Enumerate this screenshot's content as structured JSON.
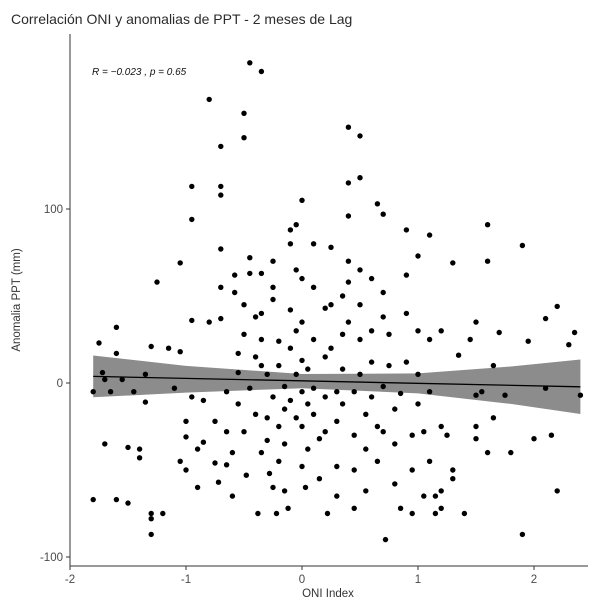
{
  "chart_data": {
    "type": "scatter",
    "title": "Correlación ONI y anomalias de PPT - 2 meses de Lag",
    "xlabel": "ONI Index",
    "ylabel": "Anomalia PPT (mm)",
    "xlim": [
      -2,
      2.5
    ],
    "ylim": [
      -100,
      190
    ],
    "xticks": [
      -2,
      -1,
      0,
      1,
      2
    ],
    "yticks": [
      -100,
      0,
      100
    ],
    "xtick_labels": [
      "-2",
      "-1",
      "0",
      "1",
      "2"
    ],
    "ytick_labels": [
      "-100",
      "0",
      "100"
    ],
    "grid": false,
    "annotation": "R = −0.023 , p = 0.65",
    "regression": {
      "x": [
        -1.8,
        2.4
      ],
      "y": [
        3.8,
        -2.2
      ]
    },
    "confidence_band": {
      "x": [
        -1.8,
        -1.0,
        0.0,
        1.0,
        1.8,
        2.4
      ],
      "upper": [
        15.8,
        9.8,
        5.2,
        5.5,
        9.5,
        13.5
      ],
      "lower": [
        -8.2,
        -5.5,
        -3.0,
        -6.0,
        -12.0,
        -17.8
      ]
    },
    "points": [
      [
        -1.8,
        -67
      ],
      [
        -1.8,
        -5
      ],
      [
        -1.75,
        23
      ],
      [
        -1.72,
        6
      ],
      [
        -1.7,
        2
      ],
      [
        -1.7,
        -35
      ],
      [
        -1.65,
        -5
      ],
      [
        -1.6,
        32
      ],
      [
        -1.6,
        17
      ],
      [
        -1.6,
        -67
      ],
      [
        -1.55,
        2
      ],
      [
        -1.5,
        -37
      ],
      [
        -1.5,
        -69
      ],
      [
        -1.45,
        -5
      ],
      [
        -1.4,
        -38
      ],
      [
        -1.4,
        -43
      ],
      [
        -1.35,
        5
      ],
      [
        -1.35,
        -11
      ],
      [
        -1.3,
        -75
      ],
      [
        -1.3,
        -87
      ],
      [
        -1.3,
        -78
      ],
      [
        -1.3,
        21
      ],
      [
        -1.25,
        58
      ],
      [
        -1.2,
        -75
      ],
      [
        -1.15,
        20
      ],
      [
        -1.1,
        -3
      ],
      [
        -1.05,
        18
      ],
      [
        -1.05,
        69
      ],
      [
        -1.05,
        -45
      ],
      [
        -1.0,
        -22
      ],
      [
        -1.0,
        -31
      ],
      [
        -1.0,
        -50
      ],
      [
        -0.95,
        113
      ],
      [
        -0.95,
        94
      ],
      [
        -0.95,
        36
      ],
      [
        -0.95,
        -8
      ],
      [
        -0.9,
        -38
      ],
      [
        -0.9,
        -60
      ],
      [
        -0.85,
        -10
      ],
      [
        -0.85,
        -34
      ],
      [
        -0.8,
        163
      ],
      [
        -0.8,
        35
      ],
      [
        -0.75,
        -22
      ],
      [
        -0.75,
        -46
      ],
      [
        -0.72,
        -57
      ],
      [
        -0.7,
        136
      ],
      [
        -0.7,
        113
      ],
      [
        -0.7,
        108
      ],
      [
        -0.7,
        77
      ],
      [
        -0.7,
        55
      ],
      [
        -0.7,
        37
      ],
      [
        -0.65,
        -5
      ],
      [
        -0.65,
        -28
      ],
      [
        -0.65,
        -47
      ],
      [
        -0.6,
        -40
      ],
      [
        -0.6,
        -65
      ],
      [
        -0.58,
        62
      ],
      [
        -0.58,
        52
      ],
      [
        -0.55,
        17
      ],
      [
        -0.55,
        6
      ],
      [
        -0.55,
        -12
      ],
      [
        -0.5,
        155
      ],
      [
        -0.5,
        141
      ],
      [
        -0.5,
        45
      ],
      [
        -0.5,
        28
      ],
      [
        -0.5,
        -28
      ],
      [
        -0.48,
        -53
      ],
      [
        -0.45,
        184
      ],
      [
        -0.45,
        72
      ],
      [
        -0.45,
        63
      ],
      [
        -0.45,
        -3
      ],
      [
        -0.4,
        38
      ],
      [
        -0.4,
        15
      ],
      [
        -0.4,
        -18
      ],
      [
        -0.38,
        -75
      ],
      [
        -0.35,
        179
      ],
      [
        -0.35,
        63
      ],
      [
        -0.35,
        40
      ],
      [
        -0.35,
        25
      ],
      [
        -0.35,
        10
      ],
      [
        -0.35,
        -40
      ],
      [
        -0.3,
        5
      ],
      [
        -0.3,
        -20
      ],
      [
        -0.3,
        -33
      ],
      [
        -0.28,
        -52
      ],
      [
        -0.25,
        70
      ],
      [
        -0.25,
        55
      ],
      [
        -0.25,
        48
      ],
      [
        -0.25,
        -8
      ],
      [
        -0.25,
        -60
      ],
      [
        -0.22,
        -75
      ],
      [
        -0.2,
        24
      ],
      [
        -0.2,
        10
      ],
      [
        -0.2,
        -25
      ],
      [
        -0.2,
        -45
      ],
      [
        -0.15,
        -2
      ],
      [
        -0.15,
        -15
      ],
      [
        -0.15,
        -35
      ],
      [
        -0.15,
        -62
      ],
      [
        -0.12,
        -72
      ],
      [
        -0.1,
        88
      ],
      [
        -0.1,
        80
      ],
      [
        -0.1,
        42
      ],
      [
        -0.1,
        20
      ],
      [
        -0.1,
        -10
      ],
      [
        -0.05,
        91
      ],
      [
        -0.05,
        65
      ],
      [
        -0.05,
        30
      ],
      [
        -0.05,
        5
      ],
      [
        -0.05,
        -20
      ],
      [
        0.0,
        105
      ],
      [
        0.0,
        60
      ],
      [
        0.0,
        35
      ],
      [
        0.0,
        13
      ],
      [
        0.0,
        -5
      ],
      [
        0.0,
        -25
      ],
      [
        0.0,
        -48
      ],
      [
        0.03,
        -60
      ],
      [
        0.05,
        8
      ],
      [
        0.05,
        -12
      ],
      [
        0.05,
        -38
      ],
      [
        0.1,
        80
      ],
      [
        0.1,
        55
      ],
      [
        0.1,
        25
      ],
      [
        0.1,
        -3
      ],
      [
        0.1,
        -18
      ],
      [
        0.15,
        -32
      ],
      [
        0.15,
        -55
      ],
      [
        0.2,
        43
      ],
      [
        0.2,
        15
      ],
      [
        0.2,
        -8
      ],
      [
        0.2,
        -28
      ],
      [
        0.22,
        -75
      ],
      [
        0.25,
        78
      ],
      [
        0.25,
        45
      ],
      [
        0.25,
        20
      ],
      [
        0.3,
        -5
      ],
      [
        0.3,
        -22
      ],
      [
        0.3,
        -48
      ],
      [
        0.3,
        -65
      ],
      [
        0.35,
        50
      ],
      [
        0.35,
        28
      ],
      [
        0.35,
        8
      ],
      [
        0.35,
        -12
      ],
      [
        0.4,
        147
      ],
      [
        0.4,
        115
      ],
      [
        0.4,
        96
      ],
      [
        0.4,
        70
      ],
      [
        0.4,
        58
      ],
      [
        0.4,
        35
      ],
      [
        0.45,
        -5
      ],
      [
        0.45,
        -30
      ],
      [
        0.45,
        -50
      ],
      [
        0.45,
        -72
      ],
      [
        0.5,
        142
      ],
      [
        0.5,
        118
      ],
      [
        0.5,
        65
      ],
      [
        0.5,
        45
      ],
      [
        0.5,
        25
      ],
      [
        0.5,
        5
      ],
      [
        0.55,
        -18
      ],
      [
        0.55,
        -38
      ],
      [
        0.55,
        -62
      ],
      [
        0.6,
        60
      ],
      [
        0.6,
        30
      ],
      [
        0.6,
        12
      ],
      [
        0.6,
        -8
      ],
      [
        0.65,
        103
      ],
      [
        0.65,
        -25
      ],
      [
        0.65,
        -45
      ],
      [
        0.7,
        97
      ],
      [
        0.7,
        52
      ],
      [
        0.7,
        38
      ],
      [
        0.7,
        -2
      ],
      [
        0.7,
        -28
      ],
      [
        0.72,
        -90
      ],
      [
        0.75,
        28
      ],
      [
        0.75,
        10
      ],
      [
        0.8,
        -15
      ],
      [
        0.8,
        -35
      ],
      [
        0.8,
        -58
      ],
      [
        0.85,
        -6
      ],
      [
        0.85,
        -72
      ],
      [
        0.9,
        88
      ],
      [
        0.9,
        62
      ],
      [
        0.9,
        40
      ],
      [
        0.9,
        12
      ],
      [
        0.95,
        -30
      ],
      [
        0.95,
        -50
      ],
      [
        0.95,
        -75
      ],
      [
        1.0,
        73
      ],
      [
        1.0,
        30
      ],
      [
        1.0,
        5
      ],
      [
        1.0,
        -12
      ],
      [
        1.05,
        -28
      ],
      [
        1.05,
        -65
      ],
      [
        1.1,
        85
      ],
      [
        1.1,
        25
      ],
      [
        1.1,
        -5
      ],
      [
        1.1,
        -45
      ],
      [
        1.15,
        -65
      ],
      [
        1.15,
        -75
      ],
      [
        1.2,
        30
      ],
      [
        1.2,
        -25
      ],
      [
        1.2,
        -62
      ],
      [
        1.2,
        -72
      ],
      [
        1.25,
        -30
      ],
      [
        1.3,
        69
      ],
      [
        1.3,
        -50
      ],
      [
        1.3,
        -55
      ],
      [
        1.35,
        16
      ],
      [
        1.4,
        -75
      ],
      [
        1.45,
        25
      ],
      [
        1.5,
        35
      ],
      [
        1.5,
        -7
      ],
      [
        1.5,
        -25
      ],
      [
        1.5,
        -32
      ],
      [
        1.55,
        -5
      ],
      [
        1.6,
        91
      ],
      [
        1.6,
        70
      ],
      [
        1.6,
        -40
      ],
      [
        1.65,
        10
      ],
      [
        1.65,
        -20
      ],
      [
        1.7,
        29
      ],
      [
        1.75,
        -7
      ],
      [
        1.8,
        -40
      ],
      [
        1.9,
        79
      ],
      [
        1.9,
        -87
      ],
      [
        1.95,
        24
      ],
      [
        2.0,
        -32
      ],
      [
        2.1,
        -3
      ],
      [
        2.1,
        37
      ],
      [
        2.15,
        -30
      ],
      [
        2.2,
        -62
      ],
      [
        2.2,
        44
      ],
      [
        2.3,
        22
      ],
      [
        2.35,
        29
      ],
      [
        2.4,
        -7
      ]
    ]
  }
}
